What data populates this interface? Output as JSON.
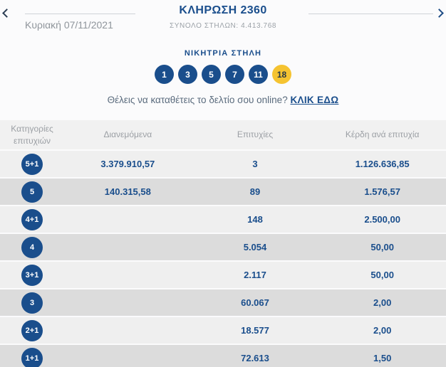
{
  "header": {
    "title": "ΚΛΗΡΩΣΗ 2360",
    "subtitle": "ΣΥΝΟΛΟ ΣΤΗΛΩΝ: 4.413.768",
    "date": "Κυριακή 07/11/2021",
    "prev_icon": "chevron-left",
    "next_icon": "chevron-right"
  },
  "winning": {
    "label": "ΝΙΚΗΤΡΙΑ ΣΤΗΛΗ",
    "numbers": [
      {
        "value": "1",
        "type": "main"
      },
      {
        "value": "3",
        "type": "main"
      },
      {
        "value": "5",
        "type": "main"
      },
      {
        "value": "7",
        "type": "main"
      },
      {
        "value": "11",
        "type": "main"
      },
      {
        "value": "18",
        "type": "joker"
      }
    ]
  },
  "cta": {
    "text": "Θέλεις να καταθέτεις το δελτίο σου online?",
    "link": "ΚΛΙΚ ΕΔΩ"
  },
  "table": {
    "columns": [
      "Κατηγορίες επιτυχιών",
      "Διανεμόμενα",
      "Επιτυχίες",
      "Κέρδη ανά επιτυχία"
    ],
    "rows": [
      {
        "category": "5+1",
        "distributed": "3.379.910,57",
        "winners": "3",
        "prize": "1.126.636,85"
      },
      {
        "category": "5",
        "distributed": "140.315,58",
        "winners": "89",
        "prize": "1.576,57"
      },
      {
        "category": "4+1",
        "distributed": "",
        "winners": "148",
        "prize": "2.500,00"
      },
      {
        "category": "4",
        "distributed": "",
        "winners": "5.054",
        "prize": "50,00"
      },
      {
        "category": "3+1",
        "distributed": "",
        "winners": "2.117",
        "prize": "50,00"
      },
      {
        "category": "3",
        "distributed": "",
        "winners": "60.067",
        "prize": "2,00"
      },
      {
        "category": "2+1",
        "distributed": "",
        "winners": "18.577",
        "prize": "2,00"
      },
      {
        "category": "1+1",
        "distributed": "",
        "winners": "72.613",
        "prize": "1,50"
      }
    ]
  },
  "colors": {
    "brand_blue": "#1a4e8c",
    "joker_yellow": "#f5c331",
    "row_light": "#efefef",
    "row_dark": "#dcdcdc",
    "header_gray_text": "#9b9fa4"
  }
}
